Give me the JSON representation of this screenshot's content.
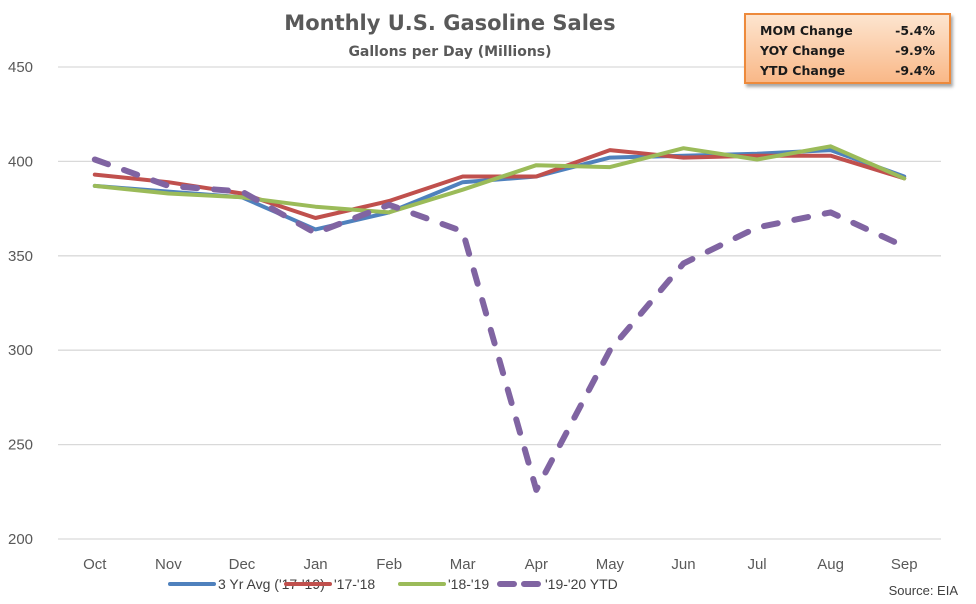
{
  "chart_data": {
    "type": "line",
    "title": "Monthly U.S. Gasoline Sales",
    "subtitle": "Gallons per Day (Millions)",
    "xlabel": "",
    "ylabel": "",
    "categories": [
      "Oct",
      "Nov",
      "Dec",
      "Jan",
      "Feb",
      "Mar",
      "Apr",
      "May",
      "Jun",
      "Jul",
      "Aug",
      "Sep"
    ],
    "ylim": [
      200,
      450
    ],
    "yticks": [
      200,
      250,
      300,
      350,
      400,
      450
    ],
    "grid": true,
    "legend_position": "bottom",
    "series": [
      {
        "name": "3 Yr Avg ('17-'19)",
        "color": "#4f81bd",
        "dashed": false,
        "values": [
          387,
          384,
          381,
          364,
          373,
          389,
          392,
          402,
          403,
          404,
          406,
          392
        ]
      },
      {
        "name": "'17-'18",
        "color": "#c0504d",
        "dashed": false,
        "values": [
          393,
          389,
          383,
          370,
          379,
          392,
          392,
          406,
          402,
          403,
          403,
          391
        ]
      },
      {
        "name": "'18-'19",
        "color": "#9bbb59",
        "dashed": false,
        "values": [
          387,
          383,
          381,
          376,
          373,
          385,
          398,
          397,
          407,
          401,
          408,
          391
        ]
      },
      {
        "name": "'19-'20 YTD",
        "color": "#8064a2",
        "dashed": true,
        "values": [
          401,
          387,
          384,
          362,
          377,
          363,
          226,
          300,
          346,
          365,
          373,
          355
        ]
      }
    ],
    "annotations": [
      {
        "label": "MOM Change",
        "value": "-5.4%"
      },
      {
        "label": "YOY Change",
        "value": "-9.9%"
      },
      {
        "label": "YTD Change",
        "value": "-9.4%"
      }
    ],
    "source": "Source: EIA"
  }
}
